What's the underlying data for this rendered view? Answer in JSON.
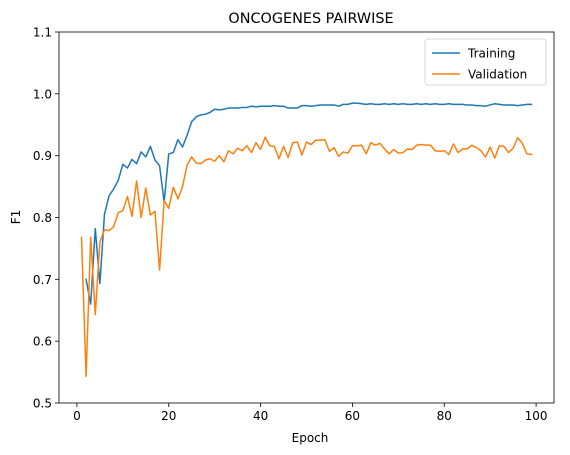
{
  "chart_data": {
    "type": "line",
    "title": "ONCOGENES PAIRWISE",
    "xlabel": "Epoch",
    "ylabel": "F1",
    "xlim": [
      -3.9,
      103.9
    ],
    "ylim": [
      0.5,
      1.1
    ],
    "xticks": [
      0,
      20,
      40,
      60,
      80,
      100
    ],
    "yticks": [
      0.5,
      0.6,
      0.7,
      0.8,
      0.9,
      1.0,
      1.1
    ],
    "xtick_labels": [
      "0",
      "20",
      "40",
      "60",
      "80",
      "100"
    ],
    "ytick_labels": [
      "0.5",
      "0.6",
      "0.7",
      "0.8",
      "0.9",
      "1.0",
      "1.1"
    ],
    "grid": false,
    "legend": "top-right",
    "series": [
      {
        "name": "Training",
        "color": "#1f77b4",
        "x": [
          2,
          3,
          4,
          5,
          6,
          7,
          8,
          9,
          10,
          11,
          12,
          13,
          14,
          15,
          16,
          17,
          18,
          19,
          20,
          21,
          22,
          23,
          24,
          25,
          26,
          27,
          28,
          29,
          30,
          31,
          32,
          33,
          34,
          35,
          36,
          37,
          38,
          39,
          40,
          41,
          42,
          43,
          44,
          45,
          46,
          47,
          48,
          49,
          50,
          51,
          52,
          53,
          54,
          55,
          56,
          57,
          58,
          59,
          60,
          61,
          62,
          63,
          64,
          65,
          66,
          67,
          68,
          69,
          70,
          71,
          72,
          73,
          74,
          75,
          76,
          77,
          78,
          79,
          80,
          81,
          82,
          83,
          84,
          85,
          86,
          87,
          88,
          89,
          90,
          91,
          92,
          93,
          94,
          95,
          96,
          97,
          98,
          99
        ],
        "y": [
          0.7,
          0.66,
          0.782,
          0.693,
          0.805,
          0.835,
          0.846,
          0.86,
          0.886,
          0.88,
          0.894,
          0.887,
          0.906,
          0.898,
          0.915,
          0.893,
          0.884,
          0.825,
          0.903,
          0.905,
          0.926,
          0.914,
          0.933,
          0.955,
          0.963,
          0.966,
          0.967,
          0.97,
          0.975,
          0.974,
          0.975,
          0.977,
          0.977,
          0.977,
          0.978,
          0.978,
          0.98,
          0.979,
          0.98,
          0.98,
          0.98,
          0.981,
          0.98,
          0.98,
          0.977,
          0.977,
          0.977,
          0.981,
          0.981,
          0.98,
          0.981,
          0.982,
          0.982,
          0.982,
          0.982,
          0.98,
          0.983,
          0.983,
          0.985,
          0.985,
          0.984,
          0.983,
          0.984,
          0.983,
          0.983,
          0.984,
          0.983,
          0.984,
          0.983,
          0.984,
          0.983,
          0.983,
          0.984,
          0.983,
          0.984,
          0.983,
          0.984,
          0.983,
          0.983,
          0.984,
          0.983,
          0.983,
          0.983,
          0.982,
          0.982,
          0.981,
          0.981,
          0.98,
          0.982,
          0.984,
          0.983,
          0.982,
          0.982,
          0.982,
          0.981,
          0.982,
          0.983,
          0.983
        ]
      },
      {
        "name": "Validation",
        "color": "#ff7f0e",
        "x": [
          1,
          2,
          3,
          4,
          5,
          6,
          7,
          8,
          9,
          10,
          11,
          12,
          13,
          14,
          15,
          16,
          17,
          18,
          19,
          20,
          21,
          22,
          23,
          24,
          25,
          26,
          27,
          28,
          29,
          30,
          31,
          32,
          33,
          34,
          35,
          36,
          37,
          38,
          39,
          40,
          41,
          42,
          43,
          44,
          45,
          46,
          47,
          48,
          49,
          50,
          51,
          52,
          53,
          54,
          55,
          56,
          57,
          58,
          59,
          60,
          61,
          62,
          63,
          64,
          65,
          66,
          67,
          68,
          69,
          70,
          71,
          72,
          73,
          74,
          75,
          76,
          77,
          78,
          79,
          80,
          81,
          82,
          83,
          84,
          85,
          86,
          87,
          88,
          89,
          90,
          91,
          92,
          93,
          94,
          95,
          96,
          97,
          98,
          99
        ],
        "y": [
          0.768,
          0.543,
          0.768,
          0.643,
          0.76,
          0.78,
          0.779,
          0.785,
          0.808,
          0.811,
          0.834,
          0.802,
          0.859,
          0.8,
          0.848,
          0.804,
          0.81,
          0.715,
          0.827,
          0.815,
          0.849,
          0.83,
          0.85,
          0.885,
          0.898,
          0.888,
          0.887,
          0.893,
          0.895,
          0.891,
          0.9,
          0.89,
          0.908,
          0.903,
          0.912,
          0.908,
          0.916,
          0.905,
          0.921,
          0.91,
          0.93,
          0.916,
          0.915,
          0.895,
          0.915,
          0.897,
          0.921,
          0.922,
          0.901,
          0.922,
          0.918,
          0.925,
          0.925,
          0.926,
          0.907,
          0.913,
          0.899,
          0.906,
          0.904,
          0.916,
          0.916,
          0.917,
          0.903,
          0.921,
          0.917,
          0.92,
          0.911,
          0.903,
          0.91,
          0.904,
          0.905,
          0.911,
          0.91,
          0.917,
          0.918,
          0.917,
          0.917,
          0.908,
          0.907,
          0.908,
          0.902,
          0.919,
          0.905,
          0.911,
          0.911,
          0.917,
          0.913,
          0.908,
          0.898,
          0.914,
          0.896,
          0.916,
          0.915,
          0.905,
          0.912,
          0.929,
          0.92,
          0.903,
          0.902
        ]
      }
    ]
  }
}
